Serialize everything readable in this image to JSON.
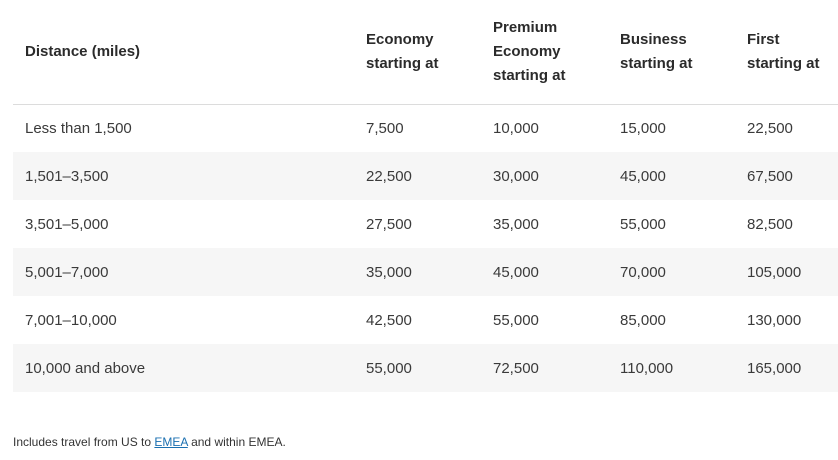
{
  "table": {
    "headers": [
      {
        "lines": [
          "Distance (miles)"
        ]
      },
      {
        "lines": [
          "Economy",
          "starting at"
        ]
      },
      {
        "lines": [
          "Premium",
          "Economy",
          "starting at"
        ]
      },
      {
        "lines": [
          "Business",
          "starting at"
        ]
      },
      {
        "lines": [
          "First",
          "starting at"
        ]
      }
    ],
    "rows": [
      [
        "Less than 1,500",
        "7,500",
        "10,000",
        "15,000",
        "22,500"
      ],
      [
        "1,501–3,500",
        "22,500",
        "30,000",
        "45,000",
        "67,500"
      ],
      [
        "3,501–5,000",
        "27,500",
        "35,000",
        "55,000",
        "82,500"
      ],
      [
        "5,001–7,000",
        "35,000",
        "45,000",
        "70,000",
        "105,000"
      ],
      [
        "7,001–10,000",
        "42,500",
        "55,000",
        "85,000",
        "130,000"
      ],
      [
        "10,000 and above",
        "55,000",
        "72,500",
        "110,000",
        "165,000"
      ]
    ]
  },
  "footnote": {
    "prefix": "Includes travel from US to ",
    "link_text": "EMEA",
    "suffix": " and within EMEA."
  }
}
